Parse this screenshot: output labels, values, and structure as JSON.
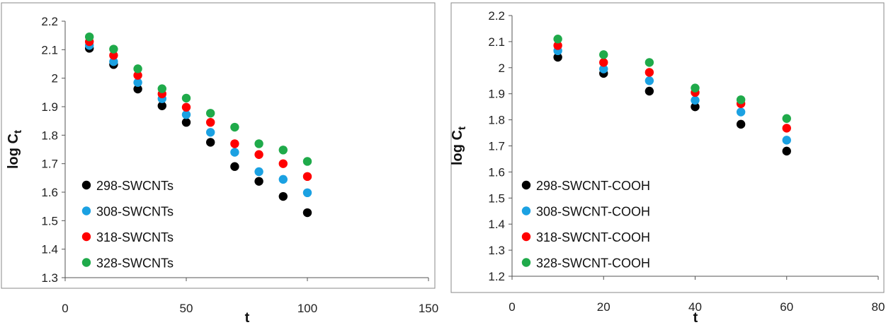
{
  "chart_data": [
    {
      "type": "scatter",
      "xlabel": "t",
      "ylabel_main": "log C",
      "ylabel_sub": "t",
      "xlim": [
        0,
        150
      ],
      "ylim": [
        1.3,
        2.2
      ],
      "x_ticks": [
        "0",
        "50",
        "100",
        "150"
      ],
      "x_tick_values": [
        0,
        50,
        100,
        150
      ],
      "y_ticks": [
        "1.3",
        "1.4",
        "1.5",
        "1.6",
        "1.7",
        "1.8",
        "1.9",
        "2",
        "2.1",
        "2.2"
      ],
      "y_tick_values": [
        1.3,
        1.4,
        1.5,
        1.6,
        1.7,
        1.8,
        1.9,
        2.0,
        2.1,
        2.2
      ],
      "grid": false,
      "legend_position": "bottom-left",
      "x": [
        10,
        20,
        30,
        40,
        50,
        60,
        70,
        80,
        90,
        100
      ],
      "series": [
        {
          "name": "298-SWCNTs",
          "color": "#000000",
          "values": [
            2.105,
            2.048,
            1.962,
            1.903,
            1.845,
            1.775,
            1.69,
            1.638,
            1.585,
            1.528
          ]
        },
        {
          "name": "308-SWCNTs",
          "color": "#1ba1e2",
          "values": [
            2.115,
            2.058,
            1.985,
            1.928,
            1.872,
            1.81,
            1.74,
            1.672,
            1.645,
            1.598
          ]
        },
        {
          "name": "318-SWCNTs",
          "color": "#ff0000",
          "values": [
            2.128,
            2.08,
            2.01,
            1.945,
            1.898,
            1.845,
            1.77,
            1.732,
            1.7,
            1.655
          ]
        },
        {
          "name": "328-SWCNTs",
          "color": "#1faa4a",
          "values": [
            2.145,
            2.102,
            2.033,
            1.963,
            1.93,
            1.877,
            1.828,
            1.77,
            1.748,
            1.708
          ]
        }
      ]
    },
    {
      "type": "scatter",
      "xlabel": "t",
      "ylabel_main": "log C",
      "ylabel_sub": "t",
      "xlim": [
        0,
        80
      ],
      "ylim": [
        1.2,
        2.2
      ],
      "x_ticks": [
        "0",
        "20",
        "40",
        "60",
        "80"
      ],
      "x_tick_values": [
        0,
        20,
        40,
        60,
        80
      ],
      "y_ticks": [
        "1.2",
        "1.3",
        "1.4",
        "1.5",
        "1.6",
        "1.7",
        "1.8",
        "1.9",
        "2",
        "2.1",
        "2.2"
      ],
      "y_tick_values": [
        1.2,
        1.3,
        1.4,
        1.5,
        1.6,
        1.7,
        1.8,
        1.9,
        2.0,
        2.1,
        2.2
      ],
      "grid": false,
      "legend_position": "bottom-left",
      "x": [
        10,
        20,
        30,
        40,
        50,
        60
      ],
      "series": [
        {
          "name": "298-SWCNT-COOH",
          "color": "#000000",
          "values": [
            2.04,
            1.978,
            1.91,
            1.85,
            1.783,
            1.68
          ]
        },
        {
          "name": "308-SWCNT-COOH",
          "color": "#1ba1e2",
          "values": [
            2.065,
            1.995,
            1.95,
            1.875,
            1.83,
            1.722
          ]
        },
        {
          "name": "318-SWCNT-COOH",
          "color": "#ff0000",
          "values": [
            2.085,
            2.02,
            1.982,
            1.905,
            1.862,
            1.768
          ]
        },
        {
          "name": "328-SWCNT-COOH",
          "color": "#1faa4a",
          "values": [
            2.11,
            2.05,
            2.02,
            1.922,
            1.877,
            1.805
          ]
        }
      ]
    }
  ]
}
